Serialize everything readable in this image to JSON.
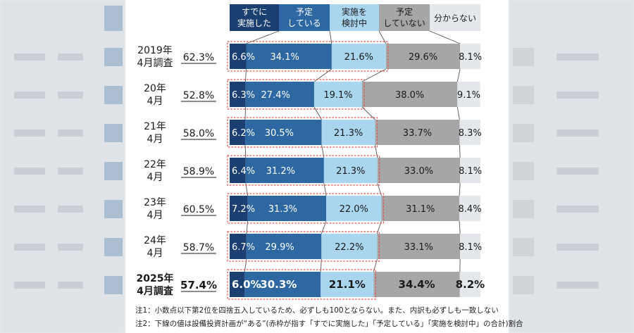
{
  "chart_data": {
    "type": "bar",
    "orientation": "horizontal",
    "stacked": true,
    "percent_stacked": true,
    "categories": [
      {
        "line1": "2019年",
        "line2": "4月調査",
        "total": "62.3%"
      },
      {
        "line1": "20年",
        "line2": "4月",
        "total": "52.8%"
      },
      {
        "line1": "21年",
        "line2": "4月",
        "total": "58.0%"
      },
      {
        "line1": "22年",
        "line2": "4月",
        "total": "58.9%"
      },
      {
        "line1": "23年",
        "line2": "4月",
        "total": "60.5%"
      },
      {
        "line1": "24年",
        "line2": "4月",
        "total": "58.7%"
      },
      {
        "line1": "2025年",
        "line2": "4月調査",
        "total": "57.4%"
      }
    ],
    "series": [
      {
        "legend1": "すでに",
        "legend2": "実施した",
        "color": "#1b3f70",
        "text_color": "#ffffff",
        "values": [
          6.6,
          6.3,
          6.2,
          6.4,
          7.2,
          6.7,
          6.0
        ],
        "labels": [
          "6.6%",
          "6.3%",
          "6.2%",
          "6.4%",
          "7.2%",
          "6.7%",
          "6.0%"
        ]
      },
      {
        "legend1": "予定",
        "legend2": "している",
        "color": "#2d68a3",
        "text_color": "#ffffff",
        "values": [
          34.1,
          27.4,
          30.5,
          31.2,
          31.3,
          29.9,
          30.3
        ],
        "labels": [
          "34.1%",
          "27.4%",
          "30.5%",
          "31.2%",
          "31.3%",
          "29.9%",
          "30.3%"
        ]
      },
      {
        "legend1": "実施を",
        "legend2": "検討中",
        "color": "#a9d5ef",
        "text_color": "#1a1a1a",
        "values": [
          21.6,
          19.1,
          21.3,
          21.3,
          22.0,
          22.2,
          21.1
        ],
        "labels": [
          "21.6%",
          "19.1%",
          "21.3%",
          "21.3%",
          "22.0%",
          "22.2%",
          "21.1%"
        ]
      },
      {
        "legend1": "予定",
        "legend2": "していない",
        "color": "#a6a6a6",
        "text_color": "#1a1a1a",
        "values": [
          29.6,
          38.0,
          33.7,
          33.0,
          31.1,
          33.1,
          34.4
        ],
        "labels": [
          "29.6%",
          "38.0%",
          "33.7%",
          "33.0%",
          "31.1%",
          "33.1%",
          "34.4%"
        ]
      },
      {
        "legend1": "分からない",
        "legend2": "",
        "color": "#e4e8ec",
        "text_color": "#1a1a1a",
        "values": [
          8.1,
          9.1,
          8.3,
          8.1,
          8.4,
          8.1,
          8.2
        ],
        "labels": [
          "8.1%",
          "9.1%",
          "8.3%",
          "8.1%",
          "8.4%",
          "8.1%",
          "8.2%"
        ]
      }
    ],
    "xlim": [
      0,
      100
    ],
    "highlight_last_row_bold": true,
    "grid": false,
    "legend": "top",
    "colors": {
      "highlight_border": "#e05050",
      "connector": "#555555"
    }
  },
  "notes": [
    "注1：小数点以下第2位を四捨五入しているため、必ずしも100とならない。また、内訳も必ずしも一致しない",
    "注2：下線の値は設備投資計画が“ある”(赤枠が指す「すでに実施した」「予定している」「実施を検討中」の合計)割合"
  ]
}
